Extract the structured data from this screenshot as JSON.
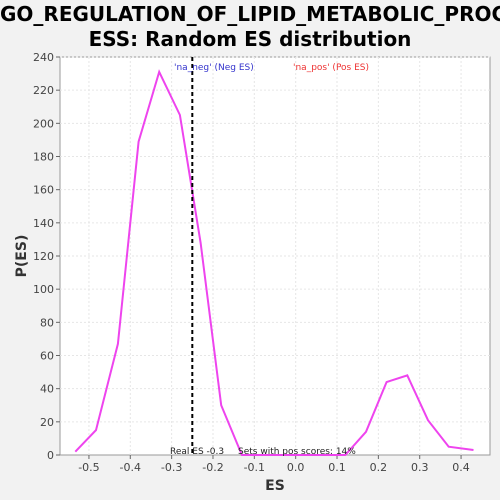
{
  "chart_data": {
    "type": "line",
    "title": "GO_REGULATION_OF_LIPID_METABOLIC_PROCESS: Random ES distribution",
    "title_lines": [
      "GO_REGULATION_OF_LIPID_METABOLIC_PROC",
      "ESS: Random ES distribution"
    ],
    "xlabel": "ES",
    "ylabel": "P(ES)",
    "xlim": [
      -0.57,
      0.47
    ],
    "ylim": [
      0,
      240
    ],
    "xticks": [
      "-0.5",
      "-0.4",
      "-0.3",
      "-0.2",
      "-0.1",
      "0.0",
      "0.1",
      "0.2",
      "0.3",
      "0.4"
    ],
    "xtick_values": [
      -0.5,
      -0.4,
      -0.3,
      -0.2,
      -0.1,
      0.0,
      0.1,
      0.2,
      0.3,
      0.4
    ],
    "yticks": [
      "0",
      "20",
      "40",
      "60",
      "80",
      "100",
      "120",
      "140",
      "160",
      "180",
      "200",
      "220",
      "240"
    ],
    "ytick_values": [
      0,
      20,
      40,
      60,
      80,
      100,
      120,
      140,
      160,
      180,
      200,
      220,
      240
    ],
    "grid": true,
    "series": [
      {
        "color": "#ee44ee",
        "x": [
          -0.533,
          -0.483,
          -0.43,
          -0.38,
          -0.33,
          -0.28,
          -0.23,
          -0.18,
          -0.13,
          -0.08,
          -0.03,
          0.02,
          0.07,
          0.12,
          0.17,
          0.22,
          0.27,
          0.32,
          0.37,
          0.43
        ],
        "y": [
          2,
          15,
          67,
          189,
          231,
          205,
          128,
          30,
          0,
          0,
          0,
          0,
          0,
          0,
          14,
          44,
          48,
          21,
          5,
          3
        ]
      }
    ],
    "real_es": -0.25,
    "legend": {
      "neg_label": "'na_neg' (Neg ES)",
      "neg_color": "#3333cc",
      "pos_label": "'na_pos' (Pos ES)",
      "pos_color": "#ee3333"
    },
    "annotations": {
      "real_es_text": "Real ES -0.3",
      "pos_scores_text": "Sets with pos scores: 14%"
    }
  }
}
